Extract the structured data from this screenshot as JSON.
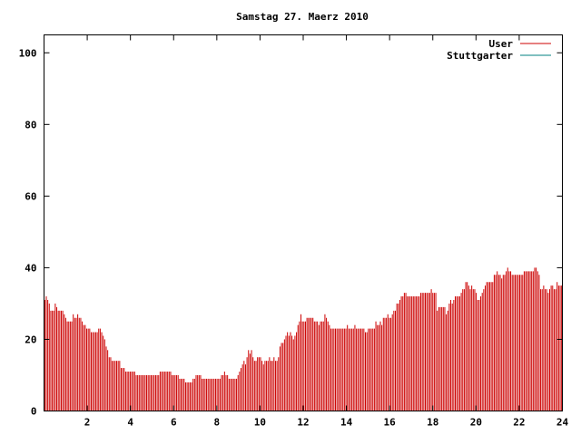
{
  "chart_data": {
    "type": "bar",
    "title": "Samstag 27. Maerz 2010",
    "xlabel": "",
    "ylabel": "",
    "xlim": [
      0,
      24
    ],
    "ylim": [
      0,
      105
    ],
    "x_ticks": [
      "2",
      "4",
      "6",
      "8",
      "10",
      "12",
      "14",
      "16",
      "18",
      "20",
      "22",
      "24"
    ],
    "y_ticks": [
      "0",
      "20",
      "40",
      "60",
      "80",
      "100"
    ],
    "legend_position": "top-right",
    "grid": false,
    "series": [
      {
        "name": "User",
        "color": "#cc0000",
        "interval_hours": 0.0833,
        "values": [
          31,
          32,
          31,
          30,
          28,
          28,
          28,
          30,
          29,
          28,
          28,
          28,
          28,
          27,
          26,
          25,
          25,
          25,
          25,
          27,
          26,
          26,
          27,
          26,
          26,
          25,
          24,
          24,
          23,
          23,
          23,
          22,
          22,
          22,
          22,
          22,
          23,
          23,
          22,
          21,
          20,
          18,
          17,
          15,
          15,
          14,
          14,
          14,
          14,
          14,
          14,
          12,
          12,
          12,
          11,
          11,
          11,
          11,
          11,
          11,
          11,
          10,
          10,
          10,
          10,
          10,
          10,
          10,
          10,
          10,
          10,
          10,
          10,
          10,
          10,
          10,
          10,
          11,
          11,
          11,
          11,
          11,
          11,
          11,
          11,
          10,
          10,
          10,
          10,
          10,
          9,
          9,
          9,
          9,
          8,
          8,
          8,
          8,
          8,
          9,
          9,
          10,
          10,
          10,
          10,
          9,
          9,
          9,
          9,
          9,
          9,
          9,
          9,
          9,
          9,
          9,
          9,
          9,
          10,
          10,
          11,
          10,
          10,
          9,
          9,
          9,
          9,
          9,
          9,
          10,
          11,
          12,
          13,
          14,
          13,
          15,
          17,
          16,
          17,
          15,
          14,
          14,
          15,
          15,
          15,
          14,
          13,
          14,
          14,
          14,
          15,
          14,
          14,
          15,
          14,
          14,
          15,
          18,
          19,
          19,
          20,
          21,
          22,
          21,
          22,
          21,
          20,
          21,
          22,
          24,
          25,
          27,
          25,
          25,
          25,
          26,
          26,
          26,
          26,
          26,
          25,
          25,
          25,
          24,
          25,
          25,
          25,
          27,
          26,
          25,
          24,
          23,
          23,
          23,
          23,
          23,
          23,
          23,
          23,
          23,
          23,
          23,
          24,
          23,
          23,
          23,
          23,
          24,
          23,
          23,
          23,
          23,
          23,
          23,
          22,
          22,
          23,
          23,
          23,
          23,
          23,
          25,
          24,
          24,
          25,
          24,
          26,
          26,
          26,
          27,
          26,
          26,
          27,
          28,
          28,
          30,
          30,
          31,
          32,
          32,
          33,
          33,
          32,
          32,
          32,
          32,
          32,
          32,
          32,
          32,
          32,
          33,
          33,
          33,
          33,
          33,
          33,
          33,
          34,
          33,
          33,
          33,
          28,
          29,
          29,
          29,
          29,
          29,
          27,
          28,
          30,
          31,
          30,
          31,
          32,
          32,
          32,
          32,
          33,
          34,
          34,
          36,
          36,
          35,
          34,
          35,
          34,
          34,
          33,
          31,
          31,
          32,
          33,
          34,
          35,
          36,
          36,
          36,
          36,
          36,
          38,
          38,
          39,
          38,
          38,
          37,
          38,
          38,
          39,
          40,
          39,
          39,
          38,
          38,
          38,
          38,
          38,
          38,
          38,
          38,
          39,
          39,
          39,
          39,
          39,
          39,
          39,
          40,
          40,
          39,
          38,
          34,
          34,
          35,
          34,
          34,
          33,
          34,
          35,
          35,
          34,
          34,
          36,
          35,
          35,
          35
        ]
      },
      {
        "name": "Stuttgarter",
        "color": "#008080",
        "values": []
      }
    ]
  }
}
